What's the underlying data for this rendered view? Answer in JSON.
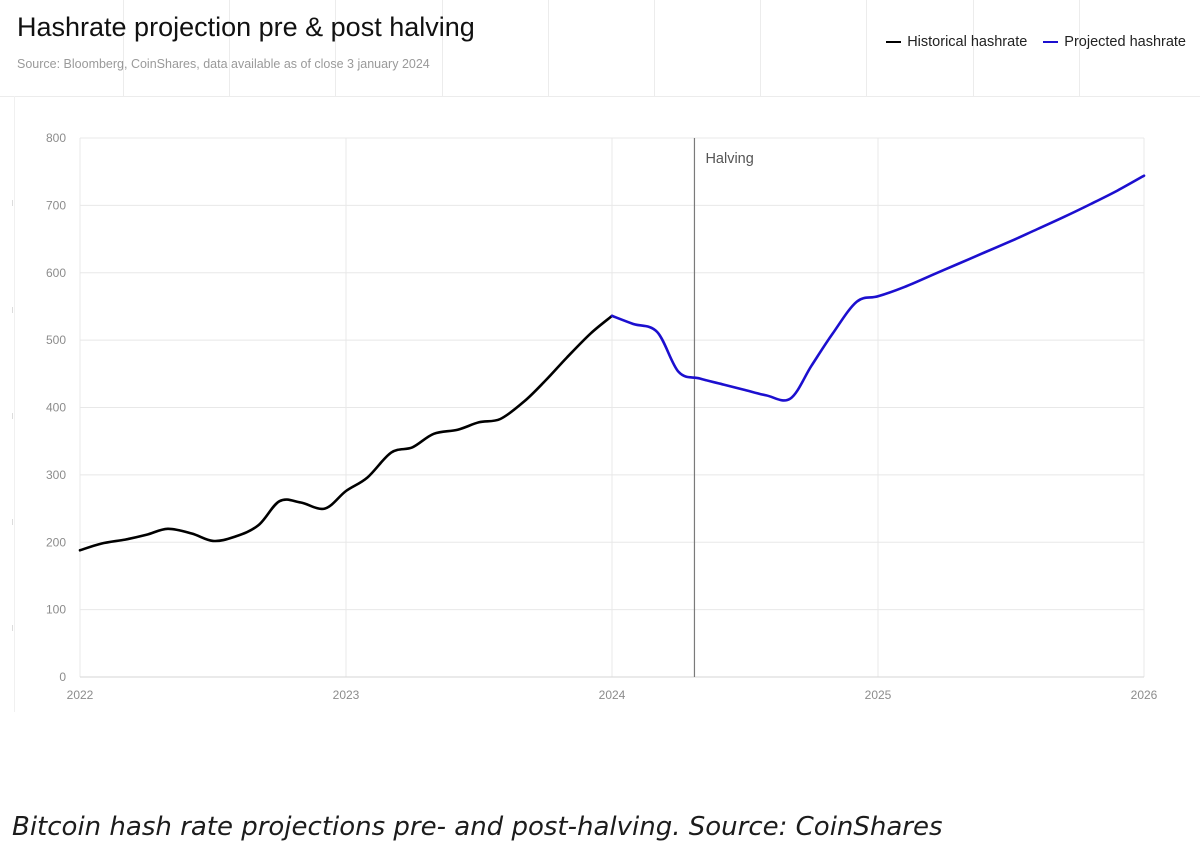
{
  "caption": "Bitcoin hash rate projections pre- and post-halving. Source: CoinShares",
  "chart_data": {
    "type": "line",
    "title": "Hashrate projection pre & post halving",
    "subtitle": "Source: Bloomberg, CoinShares, data available as of close 3 january 2024",
    "xlabel": "",
    "ylabel": "",
    "ylim": [
      0,
      800
    ],
    "xlim": [
      2022,
      2026
    ],
    "grid": true,
    "legend_position": "top-right",
    "x_ticks": [
      "2022",
      "2023",
      "2024",
      "2025",
      "2026"
    ],
    "y_ticks": [
      "0",
      "100",
      "200",
      "300",
      "400",
      "500",
      "600",
      "700",
      "800"
    ],
    "annotations": [
      {
        "label": "Halving",
        "x": 2024.31
      }
    ],
    "series": [
      {
        "name": "Historical hashrate",
        "color": "#000000",
        "points": [
          [
            2022.0,
            188
          ],
          [
            2022.08,
            198
          ],
          [
            2022.17,
            204
          ],
          [
            2022.25,
            211
          ],
          [
            2022.33,
            220
          ],
          [
            2022.42,
            213
          ],
          [
            2022.5,
            202
          ],
          [
            2022.58,
            208
          ],
          [
            2022.67,
            225
          ],
          [
            2022.75,
            261
          ],
          [
            2022.83,
            259
          ],
          [
            2022.92,
            250
          ],
          [
            2023.0,
            276
          ],
          [
            2023.08,
            296
          ],
          [
            2023.17,
            333
          ],
          [
            2023.25,
            341
          ],
          [
            2023.33,
            361
          ],
          [
            2023.42,
            367
          ],
          [
            2023.5,
            378
          ],
          [
            2023.58,
            383
          ],
          [
            2023.67,
            409
          ],
          [
            2023.75,
            440
          ],
          [
            2023.83,
            474
          ],
          [
            2023.92,
            510
          ],
          [
            2024.0,
            536
          ]
        ]
      },
      {
        "name": "Projected hashrate",
        "color": "#1c0fcf",
        "points": [
          [
            2024.0,
            536
          ],
          [
            2024.08,
            524
          ],
          [
            2024.17,
            512
          ],
          [
            2024.25,
            453
          ],
          [
            2024.33,
            443
          ],
          [
            2024.42,
            434
          ],
          [
            2024.5,
            426
          ],
          [
            2024.58,
            418
          ],
          [
            2024.67,
            413
          ],
          [
            2024.75,
            462
          ],
          [
            2024.83,
            510
          ],
          [
            2024.92,
            557
          ],
          [
            2025.0,
            565
          ],
          [
            2025.1,
            579
          ],
          [
            2025.2,
            596
          ],
          [
            2025.3,
            613
          ],
          [
            2025.4,
            630
          ],
          [
            2025.5,
            647
          ],
          [
            2025.6,
            665
          ],
          [
            2025.7,
            683
          ],
          [
            2025.8,
            702
          ],
          [
            2025.9,
            722
          ],
          [
            2026.0,
            744
          ]
        ]
      }
    ]
  }
}
